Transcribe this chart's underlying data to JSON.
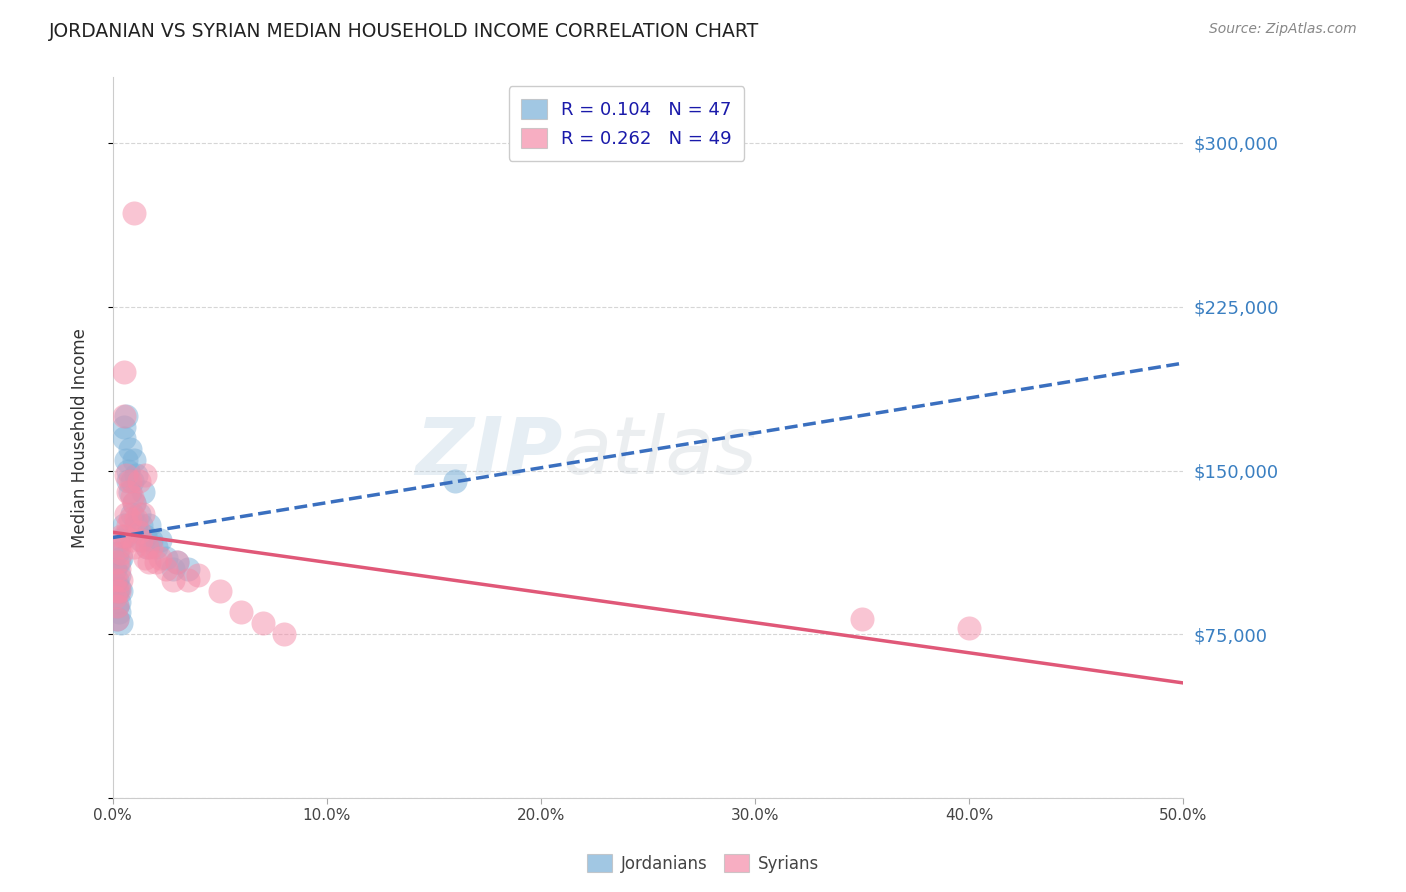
{
  "title": "JORDANIAN VS SYRIAN MEDIAN HOUSEHOLD INCOME CORRELATION CHART",
  "source": "Source: ZipAtlas.com",
  "ylabel": "Median Household Income",
  "yticks": [
    0,
    75000,
    150000,
    225000,
    300000
  ],
  "ytick_labels": [
    "",
    "$75,000",
    "$150,000",
    "$225,000",
    "$300,000"
  ],
  "xlim": [
    0.0,
    0.5
  ],
  "ylim": [
    0,
    330000
  ],
  "xticks": [
    0.0,
    0.1,
    0.2,
    0.3,
    0.4,
    0.5
  ],
  "xtick_labels": [
    "0.0%",
    "10.0%",
    "20.0%",
    "30.0%",
    "40.0%",
    "50.0%"
  ],
  "legend_entries": [
    {
      "label": "R = 0.104   N = 47",
      "color": "#aec6e8"
    },
    {
      "label": "R = 0.262   N = 49",
      "color": "#f4b8c8"
    }
  ],
  "legend_labels_bottom": [
    "Jordanians",
    "Syrians"
  ],
  "jordanians": {
    "color": "#7ab0d8",
    "line_color": "#3a6fbf",
    "line_style": "--",
    "x": [
      0.001,
      0.001,
      0.002,
      0.002,
      0.002,
      0.002,
      0.002,
      0.003,
      0.003,
      0.003,
      0.003,
      0.004,
      0.004,
      0.004,
      0.005,
      0.005,
      0.005,
      0.006,
      0.006,
      0.006,
      0.007,
      0.007,
      0.008,
      0.008,
      0.009,
      0.009,
      0.01,
      0.01,
      0.011,
      0.011,
      0.012,
      0.013,
      0.013,
      0.014,
      0.015,
      0.016,
      0.017,
      0.018,
      0.02,
      0.022,
      0.025,
      0.028,
      0.03,
      0.035,
      0.16,
      0.003,
      0.004
    ],
    "y": [
      105000,
      98000,
      112000,
      100000,
      95000,
      88000,
      82000,
      108000,
      102000,
      96000,
      90000,
      118000,
      110000,
      95000,
      170000,
      165000,
      125000,
      175000,
      155000,
      120000,
      150000,
      145000,
      160000,
      140000,
      145000,
      130000,
      155000,
      135000,
      148000,
      125000,
      130000,
      125000,
      118000,
      140000,
      120000,
      115000,
      125000,
      118000,
      115000,
      118000,
      110000,
      105000,
      108000,
      105000,
      145000,
      85000,
      80000
    ]
  },
  "syrians": {
    "color": "#f48ca8",
    "line_color": "#e05878",
    "line_style": "-",
    "x": [
      0.001,
      0.001,
      0.002,
      0.002,
      0.002,
      0.002,
      0.003,
      0.003,
      0.003,
      0.004,
      0.004,
      0.004,
      0.005,
      0.005,
      0.005,
      0.006,
      0.006,
      0.007,
      0.007,
      0.008,
      0.008,
      0.009,
      0.009,
      0.01,
      0.01,
      0.011,
      0.012,
      0.013,
      0.014,
      0.015,
      0.016,
      0.017,
      0.018,
      0.02,
      0.022,
      0.025,
      0.028,
      0.03,
      0.035,
      0.04,
      0.05,
      0.06,
      0.07,
      0.08,
      0.35,
      0.4,
      0.01,
      0.012,
      0.015
    ],
    "y": [
      100000,
      92000,
      108000,
      95000,
      88000,
      82000,
      115000,
      105000,
      95000,
      120000,
      112000,
      100000,
      195000,
      175000,
      120000,
      148000,
      130000,
      140000,
      125000,
      145000,
      128000,
      138000,
      118000,
      135000,
      115000,
      128000,
      122000,
      118000,
      130000,
      110000,
      115000,
      108000,
      115000,
      108000,
      110000,
      105000,
      100000,
      108000,
      100000,
      102000,
      95000,
      85000,
      80000,
      75000,
      82000,
      78000,
      268000,
      145000,
      148000
    ]
  },
  "watermark_zip": "ZIP",
  "watermark_atlas": "atlas",
  "background_color": "#ffffff",
  "grid_color": "#cccccc",
  "title_color": "#222222",
  "source_color": "#888888",
  "axis_label_color": "#333333",
  "tick_label_color_right": "#3a7fc1"
}
